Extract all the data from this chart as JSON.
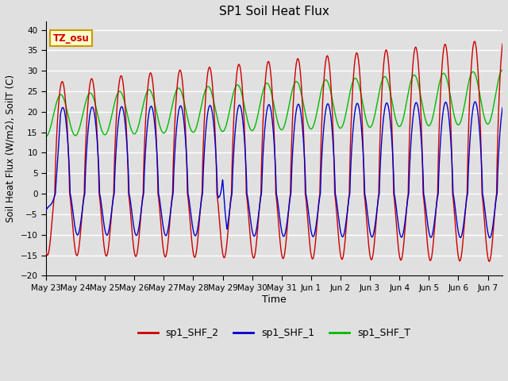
{
  "title": "SP1 Soil Heat Flux",
  "ylabel": "Soil Heat Flux (W/m2), SoilT (C)",
  "xlabel": "Time",
  "ylim": [
    -20,
    42
  ],
  "yticks": [
    -20,
    -15,
    -10,
    -5,
    0,
    5,
    10,
    15,
    20,
    25,
    30,
    35,
    40
  ],
  "bg_color": "#e0e0e0",
  "grid_color": "#ffffff",
  "line_red": "#cc0000",
  "line_blue": "#0000cc",
  "line_green": "#00bb00",
  "legend_labels": [
    "sp1_SHF_2",
    "sp1_SHF_1",
    "sp1_SHF_T"
  ],
  "tz_label": "TZ_osu",
  "tz_bg": "#ffffcc",
  "tz_border": "#cc9900",
  "tz_text_color": "#cc0000",
  "x_tick_labels": [
    "May 23",
    "May 24",
    "May 25",
    "May 26",
    "May 27",
    "May 28",
    "May 29",
    "May 30",
    "May 31",
    "Jun 1",
    "Jun 2",
    "Jun 3",
    "Jun 4",
    "Jun 5",
    "Jun 6",
    "Jun 7"
  ],
  "n_days": 15.5,
  "points_per_day": 144,
  "figwidth": 6.4,
  "figheight": 4.8,
  "dpi": 100
}
